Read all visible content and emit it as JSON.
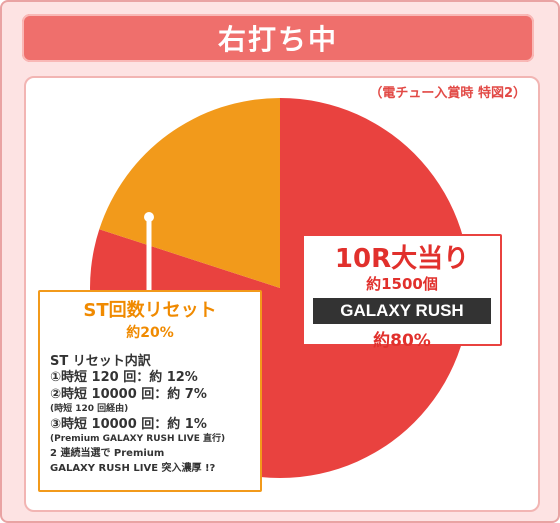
{
  "header": {
    "title": "右打ち中"
  },
  "note": "（電チュー入賞時 特図2）",
  "chart_data": {
    "type": "pie",
    "title": "右打ち中",
    "slices": [
      {
        "label": "10R大当り",
        "value": 80,
        "color": "#e9423f"
      },
      {
        "label": "ST回数リセット",
        "value": 20,
        "color": "#f29a1b"
      }
    ]
  },
  "main_callout": {
    "title": "10R大当り",
    "sub": "約1500個",
    "badge": "GALAXY RUSH",
    "pct": "約80%"
  },
  "st_callout": {
    "title": "ST回数リセット",
    "pct": "約20%",
    "breakdown_title": "ST リセット内訳",
    "row1": "①時短 120 回：約 12%",
    "row2": "②時短 10000 回：約 7%",
    "row2_sub": "(時短 120 回経由)",
    "row3": "③時短 10000 回：約 1%",
    "row3_sub": "(Premium GALAXY RUSH LIVE 直行)",
    "foot1": "2 連続当選で Premium",
    "foot2": "GALAXY RUSH LIVE 突入濃厚 !?"
  }
}
